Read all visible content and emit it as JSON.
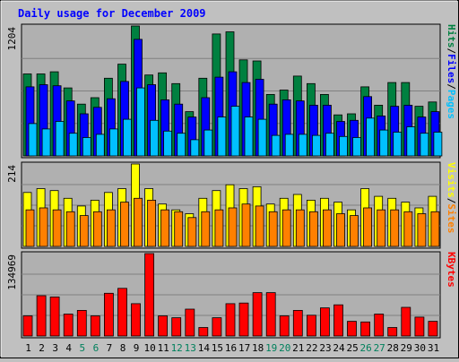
{
  "chart_data": {
    "type": "bar",
    "title": "Daily usage for December 2009",
    "categories": [
      "1",
      "2",
      "3",
      "4",
      "5",
      "6",
      "7",
      "8",
      "9",
      "10",
      "11",
      "12",
      "13",
      "14",
      "15",
      "16",
      "17",
      "18",
      "19",
      "20",
      "21",
      "22",
      "23",
      "24",
      "25",
      "26",
      "27",
      "28",
      "29",
      "30",
      "31"
    ],
    "weekend_days": [
      "5",
      "6",
      "12",
      "13",
      "19",
      "20",
      "26",
      "27"
    ],
    "panels": [
      {
        "id": "hits-files-pages",
        "max_label": "1204",
        "ylim": [
          0,
          1204
        ],
        "series": [
          {
            "name": "Hits",
            "color": "#008040",
            "values": [
              760,
              760,
              780,
              630,
              480,
              540,
              720,
              850,
              1204,
              750,
              770,
              670,
              410,
              720,
              1130,
              1150,
              890,
              880,
              570,
              610,
              740,
              670,
              570,
              380,
              390,
              640,
              470,
              680,
              680,
              460,
              500
            ]
          },
          {
            "name": "Files",
            "color": "#0000ff",
            "values": [
              640,
              660,
              650,
              510,
              390,
              450,
              530,
              690,
              1080,
              660,
              520,
              480,
              360,
              540,
              730,
              780,
              680,
              710,
              480,
              520,
              510,
              470,
              470,
              320,
              330,
              550,
              370,
              460,
              470,
              360,
              410
            ]
          },
          {
            "name": "Pages",
            "color": "#00c0ff",
            "values": [
              300,
              250,
              320,
              210,
              170,
              200,
              250,
              340,
              630,
              330,
              230,
              210,
              150,
              240,
              360,
              460,
              360,
              340,
              190,
              200,
              200,
              190,
              210,
              180,
              170,
              350,
              240,
              220,
              270,
              210,
              220
            ]
          }
        ],
        "labels": [
          "Pages",
          "Files",
          "Hits"
        ]
      },
      {
        "id": "visits-sites",
        "max_label": "214",
        "ylim": [
          0,
          214
        ],
        "series": [
          {
            "name": "Visits",
            "color": "#ffff00",
            "values": [
              140,
              150,
              145,
              125,
              105,
              120,
              140,
              150,
              214,
              150,
              110,
              95,
              85,
              125,
              145,
              160,
              150,
              155,
              110,
              125,
              135,
              120,
              125,
              115,
              95,
              150,
              130,
              125,
              115,
              100,
              130
            ]
          },
          {
            "name": "Sites",
            "color": "#ff8000",
            "values": [
              95,
              100,
              95,
              90,
              80,
              90,
              95,
              115,
              125,
              120,
              95,
              90,
              75,
              90,
              95,
              100,
              110,
              105,
              90,
              95,
              95,
              90,
              95,
              85,
              80,
              100,
              95,
              95,
              90,
              85,
              90
            ]
          }
        ],
        "labels": [
          "Sites",
          "Visits"
        ]
      },
      {
        "id": "kbytes",
        "max_label": "134969",
        "ylim": [
          0,
          134969
        ],
        "series": [
          {
            "name": "KBytes",
            "color": "#ff0000",
            "values": [
              33000,
              66000,
              64000,
              36000,
              42000,
              33000,
              70000,
              78000,
              53000,
              134969,
              33000,
              30000,
              44000,
              14000,
              30000,
              53000,
              54000,
              71000,
              71000,
              33000,
              42000,
              34000,
              46000,
              51000,
              24000,
              23000,
              36000,
              14000,
              47000,
              31000,
              24000
            ]
          }
        ],
        "labels": [
          "KBytes"
        ]
      }
    ],
    "colors": {
      "background": "#c0c0c0",
      "plot_bg": "#b0b0b0",
      "title": "#0000ff",
      "weekday_label": "#000000",
      "weekend_label": "#00805c"
    }
  }
}
